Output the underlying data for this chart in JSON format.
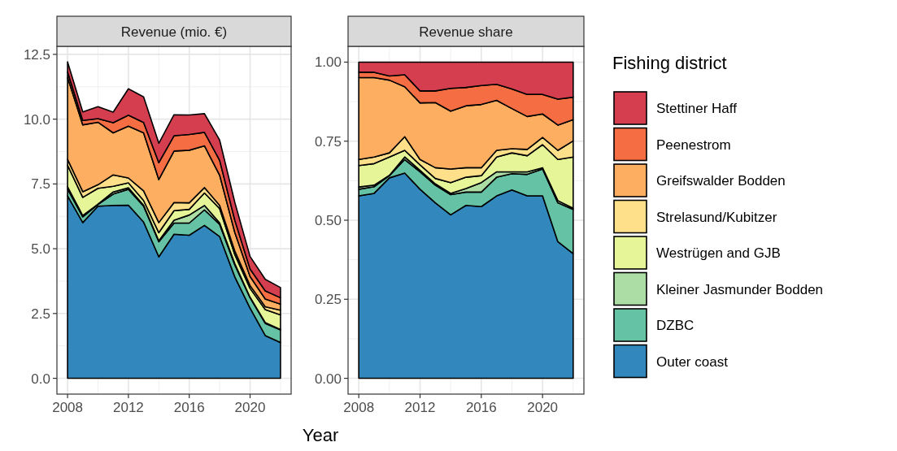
{
  "chart_data": [
    {
      "type": "area",
      "title": "Revenue (mio. €)",
      "xlabel": "Year",
      "stacked": true,
      "legend": false,
      "grid": true,
      "x": [
        2008,
        2009,
        2010,
        2011,
        2012,
        2013,
        2014,
        2015,
        2016,
        2017,
        2018,
        2019,
        2020,
        2021,
        2022
      ],
      "xlim": [
        2007.3,
        2022.7
      ],
      "xticks": [
        2008,
        2012,
        2016,
        2020
      ],
      "ylim": [
        -0.61,
        12.81
      ],
      "yticks": [
        {
          "value": 0,
          "label": "0.0"
        },
        {
          "value": 2.5,
          "label": "2.5"
        },
        {
          "value": 5,
          "label": "5.0"
        },
        {
          "value": 7.5,
          "label": "7.5"
        },
        {
          "value": 10,
          "label": "10.0"
        },
        {
          "value": 12.5,
          "label": "12.5"
        }
      ],
      "series": [
        {
          "color": "#3288bd",
          "values": [
            7.04,
            6.01,
            6.64,
            6.67,
            6.68,
            6.03,
            4.69,
            5.56,
            5.52,
            5.9,
            5.47,
            3.91,
            2.71,
            1.65,
            1.38
          ]
        },
        {
          "color": "#66c2a5",
          "values": [
            0.26,
            0.22,
            0.07,
            0.44,
            0.61,
            0.61,
            0.58,
            0.43,
            0.47,
            0.6,
            0.47,
            0.46,
            0.4,
            0.47,
            0.49
          ]
        },
        {
          "color": "#abdda4",
          "values": [
            0.09,
            0.05,
            0.01,
            0.08,
            0.06,
            0.04,
            0.04,
            0.11,
            0.31,
            0.17,
            0.06,
            0.05,
            0.02,
            0.03,
            0.01
          ]
        },
        {
          "color": "#e6f598",
          "values": [
            0.83,
            0.7,
            0.61,
            0.22,
            0.19,
            0.18,
            0.31,
            0.37,
            0.22,
            0.48,
            0.55,
            0.35,
            0.34,
            0.5,
            0.57
          ]
        },
        {
          "color": "#fee08b",
          "values": [
            0.23,
            0.22,
            0.14,
            0.44,
            0.19,
            0.37,
            0.39,
            0.31,
            0.25,
            0.21,
            0.12,
            0.14,
            0.11,
            0.11,
            0.18
          ]
        },
        {
          "color": "#fdae61",
          "values": [
            3.16,
            2.58,
            2.41,
            1.62,
            2.0,
            2.24,
            1.66,
            1.99,
            2.03,
            1.61,
            1.17,
            0.71,
            0.35,
            0.3,
            0.23
          ]
        },
        {
          "color": "#f46d43",
          "values": [
            0.21,
            0.17,
            0.14,
            0.39,
            0.42,
            0.4,
            0.65,
            0.59,
            0.61,
            0.52,
            0.57,
            0.47,
            0.29,
            0.31,
            0.25
          ]
        },
        {
          "color": "#d53e4f",
          "values": [
            0.39,
            0.33,
            0.46,
            0.41,
            1.02,
            0.99,
            0.75,
            0.81,
            0.75,
            0.72,
            0.78,
            0.69,
            0.48,
            0.45,
            0.39
          ]
        }
      ]
    },
    {
      "type": "area",
      "title": "Revenue share",
      "stacked": true,
      "legend": "right",
      "legend_title": "Fishing district",
      "grid": true,
      "x": [
        2008,
        2009,
        2010,
        2011,
        2012,
        2013,
        2014,
        2015,
        2016,
        2017,
        2018,
        2019,
        2020,
        2021,
        2022
      ],
      "xlim": [
        2007.3,
        2022.7
      ],
      "xticks": [
        2008,
        2012,
        2016,
        2020
      ],
      "ylim": [
        -0.05,
        1.05
      ],
      "yticks": [
        {
          "value": 0,
          "label": "0.00"
        },
        {
          "value": 0.25,
          "label": "0.25"
        },
        {
          "value": 0.5,
          "label": "0.50"
        },
        {
          "value": 0.75,
          "label": "0.75"
        },
        {
          "value": 1,
          "label": "1.00"
        }
      ],
      "series": [
        {
          "name": "Outer coast",
          "color": "#3288bd",
          "values": [
            0.577,
            0.585,
            0.634,
            0.649,
            0.598,
            0.555,
            0.517,
            0.547,
            0.543,
            0.577,
            0.596,
            0.577,
            0.577,
            0.432,
            0.394
          ]
        },
        {
          "name": "DZBC",
          "color": "#66c2a5",
          "values": [
            0.021,
            0.021,
            0.007,
            0.043,
            0.055,
            0.056,
            0.064,
            0.042,
            0.046,
            0.059,
            0.051,
            0.068,
            0.085,
            0.123,
            0.14
          ]
        },
        {
          "name": "Kleiner Jasmunder Bodden",
          "color": "#abdda4",
          "values": [
            0.007,
            0.005,
            0.001,
            0.008,
            0.005,
            0.004,
            0.004,
            0.011,
            0.03,
            0.017,
            0.006,
            0.008,
            0.004,
            0.007,
            0.004
          ]
        },
        {
          "name": "Westrügen and GJB",
          "color": "#e6f598",
          "values": [
            0.068,
            0.068,
            0.058,
            0.021,
            0.017,
            0.017,
            0.034,
            0.036,
            0.022,
            0.047,
            0.06,
            0.051,
            0.073,
            0.13,
            0.162
          ]
        },
        {
          "name": "Strelasund/Kubitzer",
          "color": "#fee08b",
          "values": [
            0.019,
            0.021,
            0.013,
            0.043,
            0.017,
            0.034,
            0.043,
            0.03,
            0.025,
            0.021,
            0.013,
            0.02,
            0.023,
            0.029,
            0.051
          ]
        },
        {
          "name": "Greifswalder Bodden",
          "color": "#fdae61",
          "values": [
            0.259,
            0.251,
            0.23,
            0.158,
            0.179,
            0.206,
            0.183,
            0.196,
            0.2,
            0.158,
            0.127,
            0.104,
            0.074,
            0.08,
            0.067
          ]
        },
        {
          "name": "Peenestrom",
          "color": "#f46d43",
          "values": [
            0.017,
            0.017,
            0.013,
            0.038,
            0.038,
            0.037,
            0.072,
            0.058,
            0.06,
            0.051,
            0.062,
            0.07,
            0.062,
            0.082,
            0.071
          ]
        },
        {
          "name": "Stettiner Haff",
          "color": "#d53e4f",
          "values": [
            0.032,
            0.032,
            0.044,
            0.04,
            0.091,
            0.091,
            0.083,
            0.08,
            0.074,
            0.07,
            0.085,
            0.102,
            0.102,
            0.117,
            0.111
          ]
        }
      ]
    }
  ]
}
